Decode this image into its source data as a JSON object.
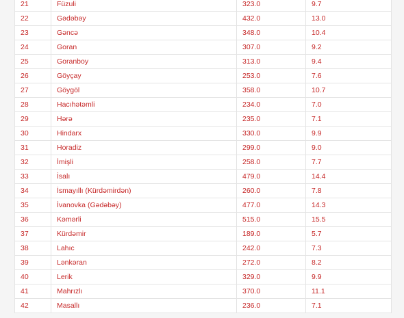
{
  "table": {
    "rows": [
      {
        "no": "21",
        "name": "Füzuli",
        "value": "323.0",
        "pct": "9.7"
      },
      {
        "no": "22",
        "name": "Gədəbəy",
        "value": "432.0",
        "pct": "13.0"
      },
      {
        "no": "23",
        "name": "Gəncə",
        "value": "348.0",
        "pct": "10.4"
      },
      {
        "no": "24",
        "name": "Goran",
        "value": "307.0",
        "pct": "9.2"
      },
      {
        "no": "25",
        "name": "Goranboy",
        "value": "313.0",
        "pct": "9.4"
      },
      {
        "no": "26",
        "name": "Göyçay",
        "value": "253.0",
        "pct": "7.6"
      },
      {
        "no": "27",
        "name": "Göygöl",
        "value": "358.0",
        "pct": "10.7"
      },
      {
        "no": "28",
        "name": "Hacıhətəmli",
        "value": "234.0",
        "pct": "7.0"
      },
      {
        "no": "29",
        "name": "Hərə",
        "value": "235.0",
        "pct": "7.1"
      },
      {
        "no": "30",
        "name": "Hindarx",
        "value": "330.0",
        "pct": "9.9"
      },
      {
        "no": "31",
        "name": "Horadiz",
        "value": "299.0",
        "pct": "9.0"
      },
      {
        "no": "32",
        "name": "İmişli",
        "value": "258.0",
        "pct": "7.7"
      },
      {
        "no": "33",
        "name": "İsalı",
        "value": "479.0",
        "pct": "14.4"
      },
      {
        "no": "34",
        "name": "İsmayıllı (Kürdəmirdən)",
        "value": "260.0",
        "pct": "7.8"
      },
      {
        "no": "35",
        "name": "İvanovka (Gədəbəy)",
        "value": "477.0",
        "pct": "14.3"
      },
      {
        "no": "36",
        "name": "Kəmərli",
        "value": "515.0",
        "pct": "15.5"
      },
      {
        "no": "37",
        "name": "Kürdəmir",
        "value": "189.0",
        "pct": "5.7"
      },
      {
        "no": "38",
        "name": "Lahıc",
        "value": "242.0",
        "pct": "7.3"
      },
      {
        "no": "39",
        "name": "Lənkəran",
        "value": "272.0",
        "pct": "8.2"
      },
      {
        "no": "40",
        "name": "Lerik",
        "value": "329.0",
        "pct": "9.9"
      },
      {
        "no": "41",
        "name": "Mahrızlı",
        "value": "370.0",
        "pct": "11.1"
      },
      {
        "no": "42",
        "name": "Masallı",
        "value": "236.0",
        "pct": "7.1"
      }
    ]
  },
  "colors": {
    "text": "#c62828",
    "border": "#e4e4e4",
    "background": "#f5f5f5"
  }
}
